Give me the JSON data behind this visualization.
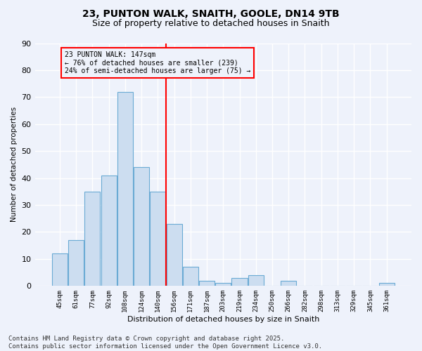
{
  "title": "23, PUNTON WALK, SNAITH, GOOLE, DN14 9TB",
  "subtitle": "Size of property relative to detached houses in Snaith",
  "xlabel": "Distribution of detached houses by size in Snaith",
  "ylabel": "Number of detached properties",
  "categories": [
    "45sqm",
    "61sqm",
    "77sqm",
    "92sqm",
    "108sqm",
    "124sqm",
    "140sqm",
    "156sqm",
    "171sqm",
    "187sqm",
    "203sqm",
    "219sqm",
    "234sqm",
    "250sqm",
    "266sqm",
    "282sqm",
    "298sqm",
    "313sqm",
    "329sqm",
    "345sqm",
    "361sqm"
  ],
  "values": [
    12,
    17,
    35,
    41,
    72,
    44,
    35,
    23,
    7,
    2,
    1,
    3,
    4,
    0,
    2,
    0,
    0,
    0,
    0,
    0,
    1
  ],
  "bar_color": "#ccddf0",
  "bar_edge_color": "#6aaad4",
  "vline_x_index": 6.5,
  "vline_color": "red",
  "annotation_text": "23 PUNTON WALK: 147sqm\n← 76% of detached houses are smaller (239)\n24% of semi-detached houses are larger (75) →",
  "annotation_box_color": "red",
  "ylim": [
    0,
    90
  ],
  "yticks": [
    0,
    10,
    20,
    30,
    40,
    50,
    60,
    70,
    80,
    90
  ],
  "background_color": "#eef2fb",
  "grid_color": "#ffffff",
  "footer_text": "Contains HM Land Registry data © Crown copyright and database right 2025.\nContains public sector information licensed under the Open Government Licence v3.0.",
  "title_fontsize": 10,
  "subtitle_fontsize": 9,
  "footer_fontsize": 6.5
}
